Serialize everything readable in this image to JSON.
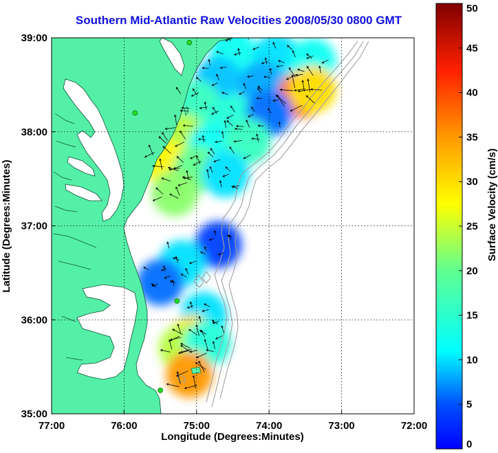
{
  "title": "Southern Mid-Atlantic Raw Velocities 2008/05/30 0800 GMT",
  "xlabel": "Longitude (Degrees:Minutes)",
  "ylabel": "Latitude (Degrees:Minutes)",
  "x_ticks": [
    "77:00",
    "76:00",
    "75:00",
    "74:00",
    "73:00",
    "72:00"
  ],
  "y_ticks": [
    "39:00",
    "38:00",
    "37:00",
    "36:00",
    "35:00"
  ],
  "colorbar": {
    "label": "Surface Velocity (cm/s)",
    "ticks": [
      "0",
      "5",
      "10",
      "15",
      "20",
      "25",
      "30",
      "35",
      "40",
      "45",
      "50"
    ],
    "min": 0,
    "max": 50
  },
  "colors": {
    "land": "#55f0a8",
    "water": "#ffffff",
    "title": "#1010e0",
    "bathymetry": "#a0a0a0",
    "station": "#22dd22"
  },
  "chart_data": {
    "type": "map",
    "lon_range": [
      -77,
      -72
    ],
    "lat_range": [
      35,
      39
    ],
    "grid": true,
    "colormap": "jet",
    "stations": [
      {
        "lon": -75.1,
        "lat": 38.95
      },
      {
        "lon": -75.85,
        "lat": 38.2
      },
      {
        "lon": -75.27,
        "lat": 36.2
      },
      {
        "lon": -75.5,
        "lat": 35.25
      }
    ],
    "velocity_patches": [
      {
        "lon": -74.5,
        "lat": 38.85,
        "speed": 12
      },
      {
        "lon": -73.9,
        "lat": 38.8,
        "speed": 10
      },
      {
        "lon": -73.4,
        "lat": 38.75,
        "speed": 12
      },
      {
        "lon": -74.7,
        "lat": 38.55,
        "speed": 9
      },
      {
        "lon": -74.1,
        "lat": 38.5,
        "speed": 8
      },
      {
        "lon": -73.55,
        "lat": 38.4,
        "speed": 38
      },
      {
        "lon": -73.4,
        "lat": 38.45,
        "speed": 30
      },
      {
        "lon": -75.0,
        "lat": 38.3,
        "speed": 16
      },
      {
        "lon": -74.5,
        "lat": 38.15,
        "speed": 14
      },
      {
        "lon": -74.0,
        "lat": 38.2,
        "speed": 6
      },
      {
        "lon": -75.2,
        "lat": 37.95,
        "speed": 24
      },
      {
        "lon": -74.8,
        "lat": 37.85,
        "speed": 12
      },
      {
        "lon": -74.3,
        "lat": 37.9,
        "speed": 16
      },
      {
        "lon": -75.4,
        "lat": 37.65,
        "speed": 28
      },
      {
        "lon": -75.0,
        "lat": 37.6,
        "speed": 20
      },
      {
        "lon": -74.6,
        "lat": 37.55,
        "speed": 10
      },
      {
        "lon": -75.3,
        "lat": 37.35,
        "speed": 22
      },
      {
        "lon": -74.7,
        "lat": 36.8,
        "speed": 4
      },
      {
        "lon": -75.2,
        "lat": 36.6,
        "speed": 10
      },
      {
        "lon": -75.5,
        "lat": 36.4,
        "speed": 6
      },
      {
        "lon": -74.9,
        "lat": 36.05,
        "speed": 10
      },
      {
        "lon": -75.05,
        "lat": 35.8,
        "speed": 30
      },
      {
        "lon": -75.2,
        "lat": 35.7,
        "speed": 24
      },
      {
        "lon": -74.85,
        "lat": 35.75,
        "speed": 14
      },
      {
        "lon": -75.1,
        "lat": 35.42,
        "speed": 35
      }
    ]
  }
}
